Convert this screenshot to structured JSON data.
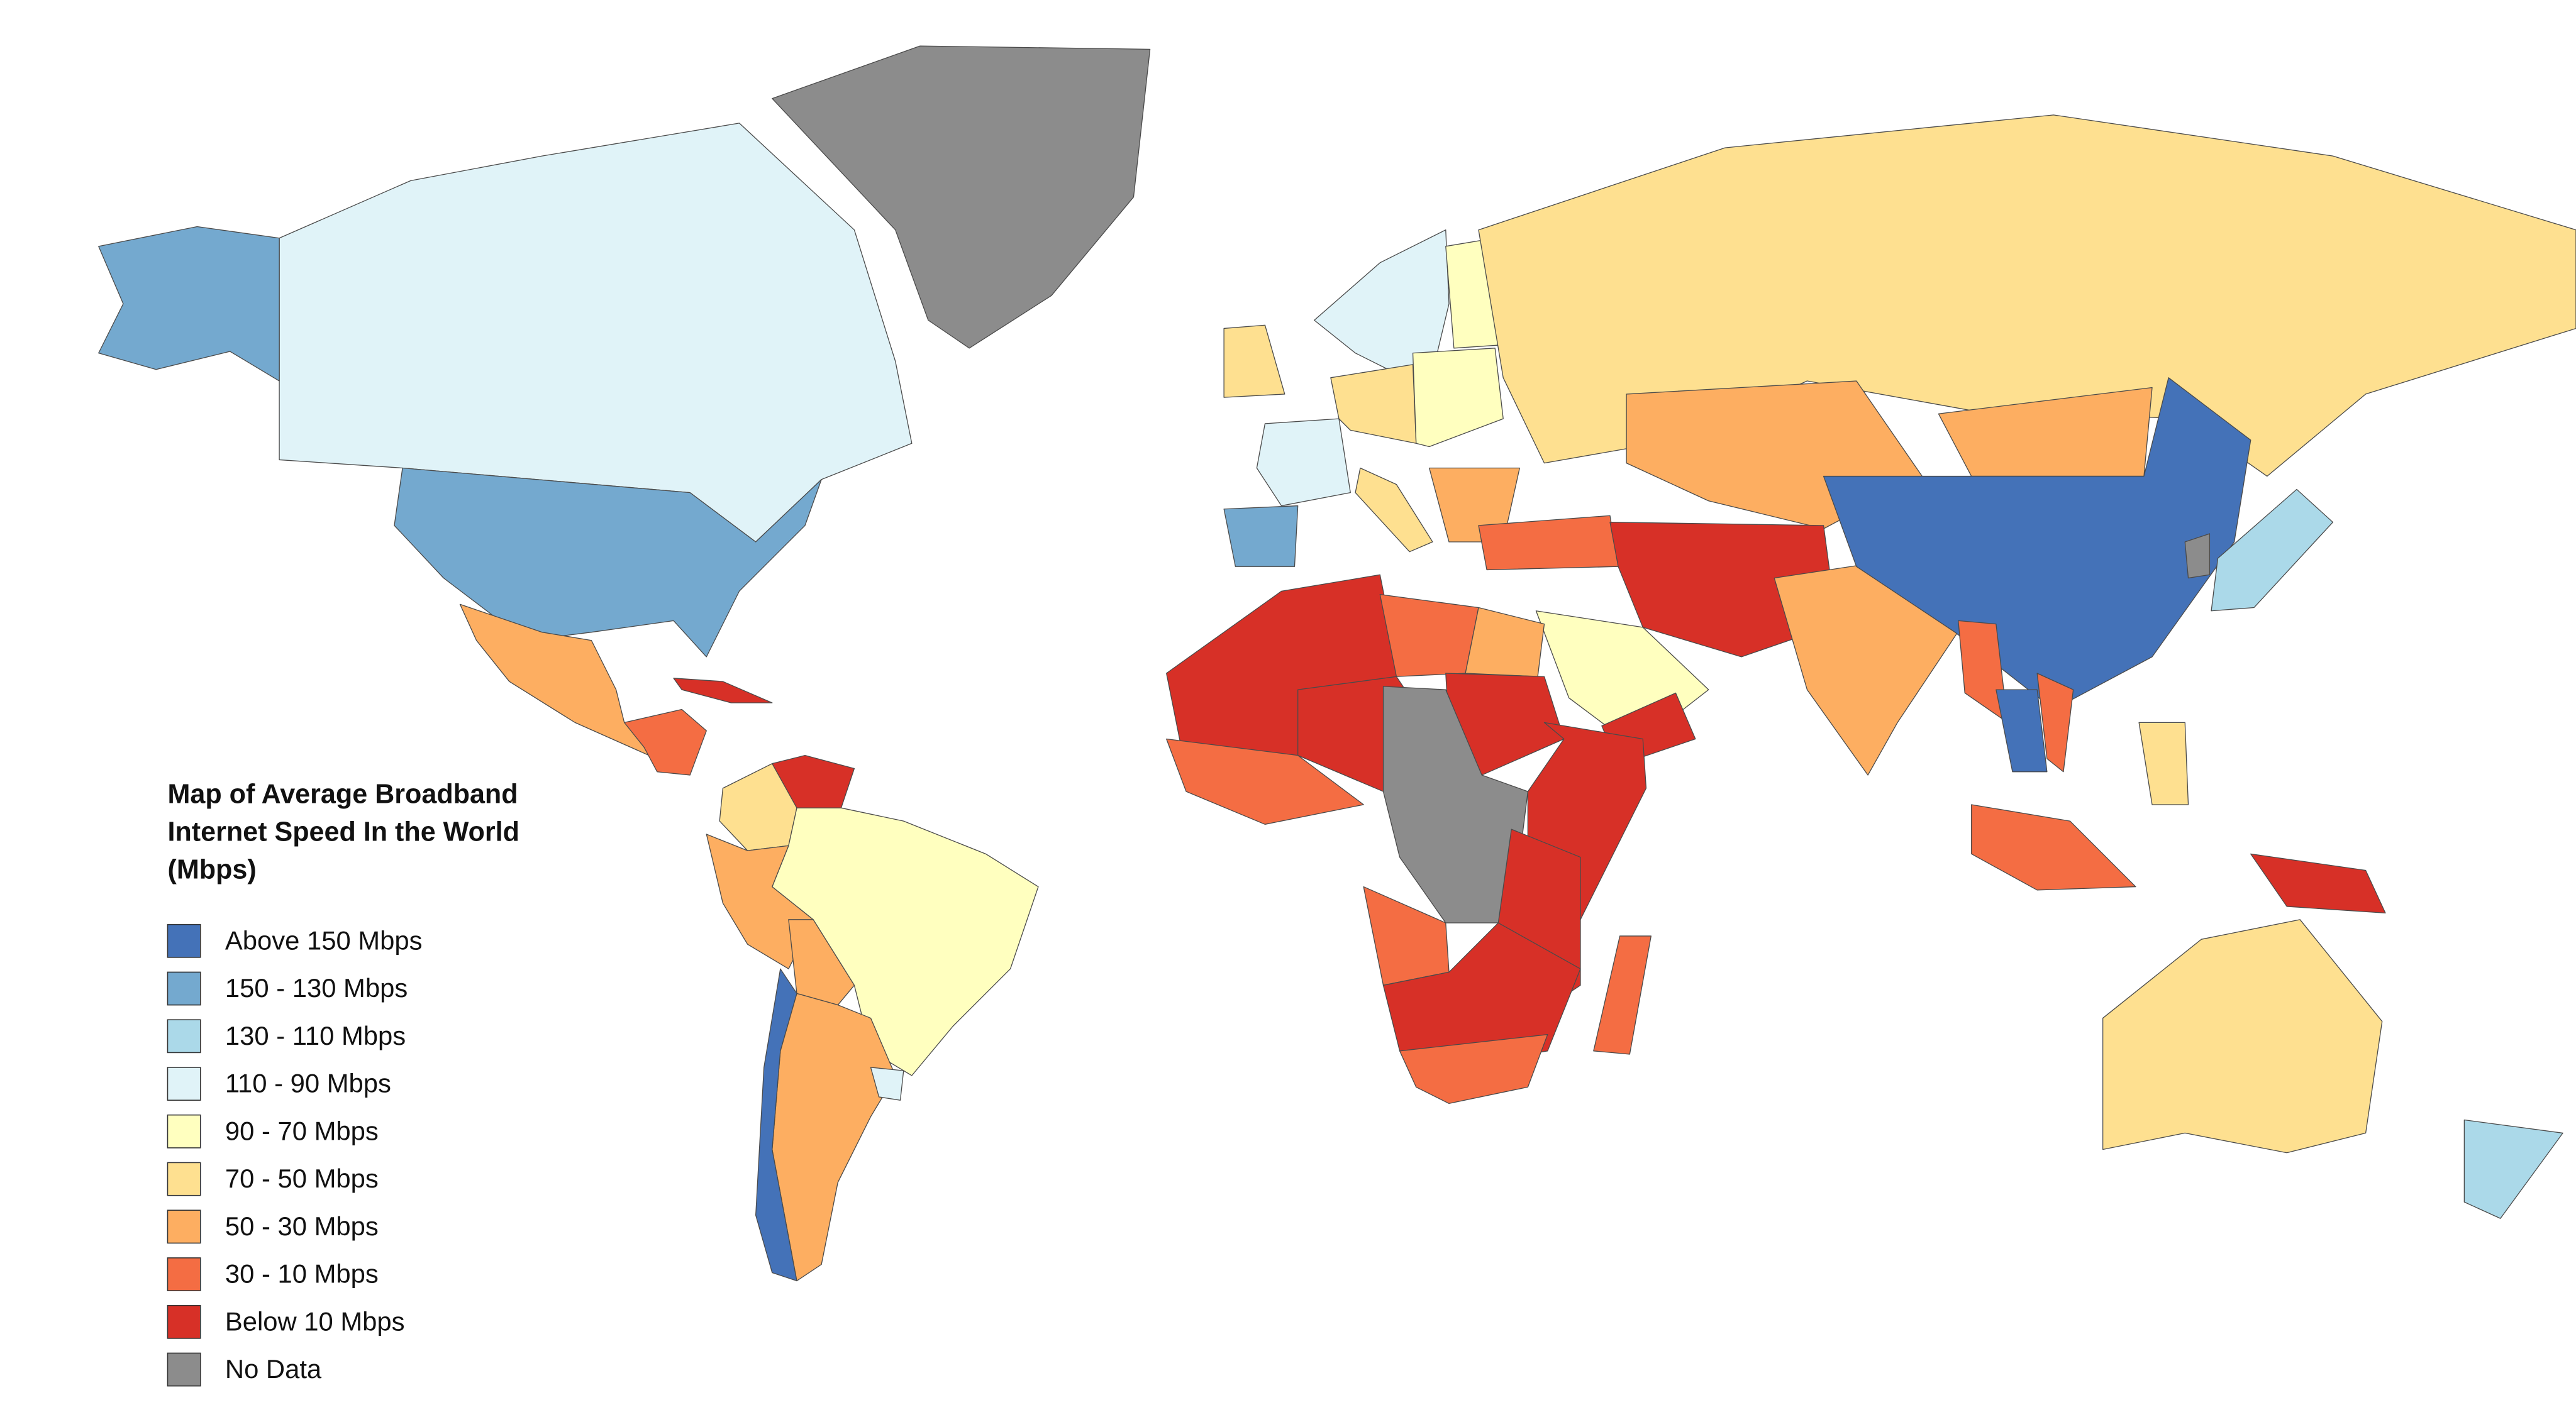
{
  "title_lines": [
    "Map of Average Broadband",
    "Internet Speed In the World",
    "(Mbps)"
  ],
  "legend": [
    {
      "label": "Above 150 Mbps",
      "color": "#4472b8"
    },
    {
      "label": "150 - 130 Mbps",
      "color": "#74a9cf"
    },
    {
      "label": "130 - 110 Mbps",
      "color": "#abd9e9"
    },
    {
      "label": "110 - 90 Mbps",
      "color": "#e0f3f8"
    },
    {
      "label": "90 - 70 Mbps",
      "color": "#ffffbf"
    },
    {
      "label": "70 - 50 Mbps",
      "color": "#fee090"
    },
    {
      "label": "50 - 30 Mbps",
      "color": "#fdae61"
    },
    {
      "label": "30 - 10 Mbps",
      "color": "#f46d43"
    },
    {
      "label": "Below 10 Mbps",
      "color": "#d73027"
    },
    {
      "label": "No Data",
      "color": "#8c8c8c"
    }
  ]
}
